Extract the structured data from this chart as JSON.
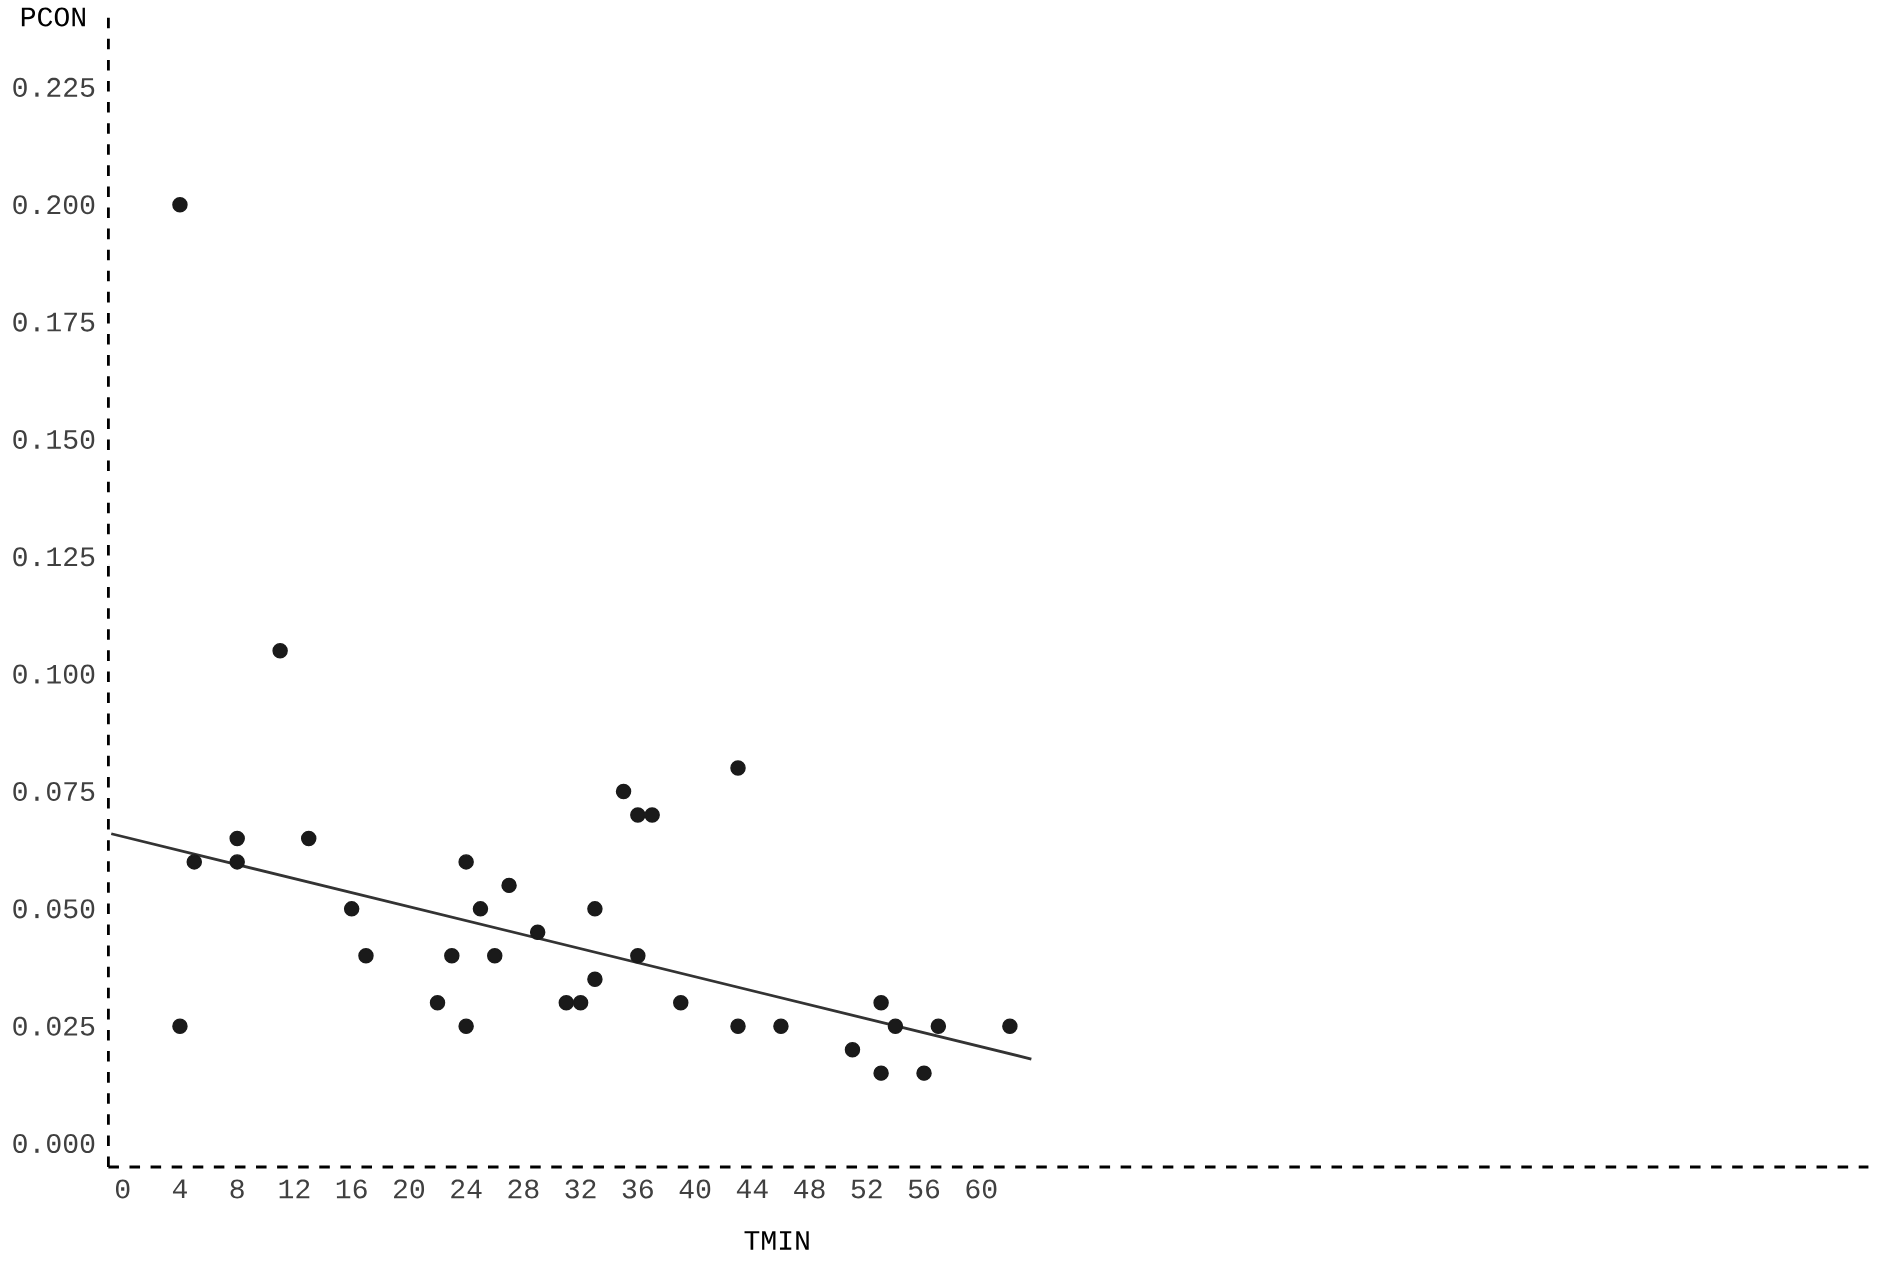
{
  "chart_data": {
    "type": "scatter",
    "marker": "circle",
    "xlabel": "TMIN",
    "ylabel": "PCON",
    "xlim": [
      -1,
      122
    ],
    "ylim": [
      -0.005,
      0.24
    ],
    "xticks": [
      0,
      4,
      8,
      12,
      16,
      20,
      24,
      28,
      32,
      36,
      40,
      44,
      48,
      52,
      56,
      60
    ],
    "yticks": [
      {
        "value": 0,
        "label": "0.000"
      },
      {
        "value": 0.025,
        "label": "0.025"
      },
      {
        "value": 0.05,
        "label": "0.050"
      },
      {
        "value": 0.075,
        "label": "0.075"
      },
      {
        "value": 0.1,
        "label": "0.100"
      },
      {
        "value": 0.125,
        "label": "0.125"
      },
      {
        "value": 0.15,
        "label": "0.150"
      },
      {
        "value": 0.175,
        "label": "0.175"
      },
      {
        "value": 0.2,
        "label": "0.200"
      },
      {
        "value": 0.225,
        "label": "0.225"
      }
    ],
    "series": [
      {
        "color": "#1a1a1a",
        "x": [
          4,
          4,
          5,
          8,
          8,
          11,
          13,
          16,
          17,
          22,
          23,
          24,
          24,
          25,
          26,
          27,
          29,
          31,
          32,
          33,
          33,
          35,
          36,
          37,
          36,
          39,
          43,
          43,
          46,
          51,
          53,
          53,
          54,
          56,
          57,
          62
        ],
        "values": [
          0.2,
          0.025,
          0.06,
          0.065,
          0.06,
          0.105,
          0.065,
          0.05,
          0.04,
          0.03,
          0.04,
          0.06,
          0.025,
          0.05,
          0.04,
          0.055,
          0.045,
          0.03,
          0.03,
          0.05,
          0.035,
          0.075,
          0.07,
          0.07,
          0.04,
          0.03,
          0.08,
          0.025,
          0.025,
          0.02,
          0.03,
          0.015,
          0.025,
          0.015,
          0.025,
          0.025
        ]
      },
      {
        "type": "line",
        "color": "#333333",
        "line_style": "solid",
        "marker": "none",
        "x": [
          -0.8,
          63.5
        ],
        "values": [
          0.066,
          0.018
        ]
      }
    ]
  }
}
